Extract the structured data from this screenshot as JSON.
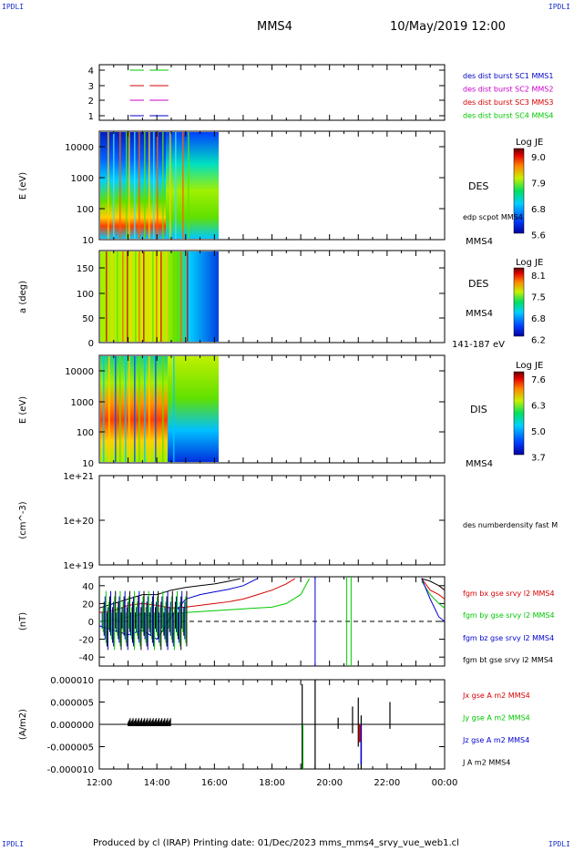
{
  "corner_labels": {
    "top_left": "IPDLI",
    "top_right": "IPDLI",
    "bottom_left": "IPDLI",
    "bottom_right": "IPDLI"
  },
  "header": {
    "spacecraft": "MMS4",
    "datetime": "10/May/2019 12:00"
  },
  "footer": {
    "text": "Produced by cl (IRAP)   Printing date: 01/Dec/2023   mms_mms4_srvy_vue_web1.cl"
  },
  "time_axis": {
    "ticks": [
      "12:00",
      "14:00",
      "16:00",
      "18:00",
      "20:00",
      "22:00",
      "00:00"
    ],
    "range_hours": [
      12,
      24
    ]
  },
  "colors": {
    "mms1": "#0000c8",
    "mms2": "#c800c8",
    "mms3": "#d80000",
    "mms4": "#00c800",
    "bx": "#d80000",
    "by": "#00c800",
    "bz": "#0000d0",
    "bt": "#000000"
  },
  "chart_data": [
    {
      "type": "line",
      "panel": "burst",
      "yticks": [
        "4",
        "3",
        "2",
        "1"
      ],
      "series": [
        {
          "name": "des dist burst SC1 MMS1",
          "y": 1,
          "x": [
            13.0,
            14.4
          ]
        },
        {
          "name": "des dist burst SC2 MMS2",
          "y": 2,
          "x": [
            13.0,
            14.4
          ]
        },
        {
          "name": "des dist burst SC3 MMS3",
          "y": 3,
          "x": [
            13.0,
            14.4
          ]
        },
        {
          "name": "des dist burst SC4 MMS4",
          "y": 4,
          "x": [
            13.0,
            14.4
          ]
        }
      ],
      "ylim": [
        0.5,
        4.5
      ]
    },
    {
      "type": "heatmap",
      "panel": "des_energy",
      "ylabel": "E (eV)",
      "yticks": [
        "10000",
        "1000",
        "100",
        "10"
      ],
      "labels": [
        "DES",
        "edp scpot MMS4",
        "MMS4"
      ],
      "colorbar": {
        "title": "Log JE",
        "ticks": [
          "9.0",
          "7.9",
          "6.8",
          "5.6"
        ]
      },
      "data_extent_hours": [
        12.0,
        16.2
      ]
    },
    {
      "type": "heatmap",
      "panel": "des_pitch",
      "ylabel": "a (deg)",
      "yticks": [
        "150",
        "100",
        "50",
        "0"
      ],
      "labels": [
        "DES",
        "MMS4",
        "141-187 eV"
      ],
      "colorbar": {
        "title": "Log JE",
        "ticks": [
          "8.1",
          "7.5",
          "6.8",
          "6.2"
        ]
      },
      "data_extent_hours": [
        12.0,
        16.2
      ]
    },
    {
      "type": "heatmap",
      "panel": "dis_energy",
      "ylabel": "E (eV)",
      "yticks": [
        "10000",
        "1000",
        "100",
        "10"
      ],
      "labels": [
        "DIS",
        "MMS4"
      ],
      "colorbar": {
        "title": "Log JE",
        "ticks": [
          "7.6",
          "6.3",
          "5.0",
          "3.7"
        ]
      },
      "data_extent_hours": [
        12.0,
        16.2
      ]
    },
    {
      "type": "line",
      "panel": "density",
      "ylabel": "(cm^-3)",
      "yticks": [
        "1e+21",
        "1e+20",
        "1e+19"
      ],
      "series": [
        {
          "name": "des numberdensity fast M",
          "values": []
        }
      ]
    },
    {
      "type": "line",
      "panel": "fgm",
      "ylabel": "(nT)",
      "yticks": [
        "40",
        "20",
        "0",
        "-20",
        "-40"
      ],
      "ylim": [
        -50,
        50
      ],
      "series": [
        {
          "name": "fgm bx gse srvy l2 MMS4",
          "x": [
            12.0,
            12.5,
            13.0,
            13.5,
            14.0,
            14.5,
            15.0,
            15.5,
            16.0,
            16.5,
            17.0,
            17.5,
            18.0,
            18.5,
            18.8,
            23.2,
            23.5,
            23.8,
            24.0
          ],
          "y": [
            10,
            12,
            18,
            20,
            18,
            15,
            16,
            18,
            20,
            22,
            25,
            30,
            35,
            42,
            48,
            48,
            35,
            30,
            25
          ]
        },
        {
          "name": "fgm by gse srvy l2 MMS4",
          "x": [
            12.0,
            12.5,
            13.0,
            13.5,
            14.0,
            14.5,
            15.0,
            15.5,
            16.0,
            16.5,
            17.0,
            17.5,
            18.0,
            18.5,
            19.0,
            19.3,
            23.2,
            23.5,
            23.8,
            24.0
          ],
          "y": [
            0,
            2,
            5,
            8,
            5,
            8,
            10,
            11,
            12,
            13,
            14,
            15,
            16,
            20,
            30,
            48,
            45,
            30,
            20,
            15
          ]
        },
        {
          "name": "fgm bz gse srvy l2 MMS4",
          "x": [
            12.0,
            12.5,
            13.0,
            13.5,
            14.0,
            14.5,
            15.0,
            15.5,
            16.0,
            16.5,
            17.0,
            17.5,
            23.2,
            23.5,
            23.8,
            24.0
          ],
          "y": [
            -5,
            -10,
            -15,
            -10,
            -20,
            5,
            25,
            30,
            33,
            36,
            40,
            48,
            48,
            25,
            5,
            0
          ]
        },
        {
          "name": "fgm bt gse srvy l2 MMS4",
          "x": [
            12.0,
            12.5,
            13.0,
            13.5,
            14.0,
            14.5,
            15.0,
            15.5,
            16.0,
            16.5,
            16.9,
            23.2,
            23.5,
            23.8,
            24.0
          ],
          "y": [
            15,
            20,
            25,
            30,
            30,
            35,
            38,
            40,
            42,
            45,
            48,
            48,
            45,
            40,
            35
          ]
        }
      ]
    },
    {
      "type": "line",
      "panel": "current",
      "ylabel": "(A/m2)",
      "yticks": [
        "0.000010",
        "0.000005",
        "0.000000",
        "-0.000005",
        "-0.000010"
      ],
      "ylim": [
        -1e-05,
        1e-05
      ],
      "series": [
        {
          "name": "Jx gse A m2 MMS4",
          "values": []
        },
        {
          "name": "Jy gse A m2 MMS4",
          "values": []
        },
        {
          "name": "Jz gse A m2 MMS4",
          "values": []
        },
        {
          "name": "J A m2 MMS4",
          "values": []
        }
      ]
    }
  ]
}
